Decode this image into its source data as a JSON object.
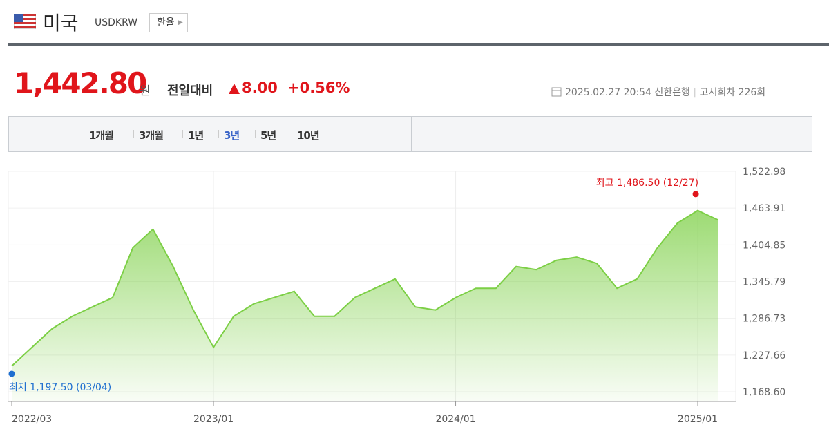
{
  "header": {
    "title": "미국",
    "code": "USDKRW",
    "button": "환율"
  },
  "price": {
    "value": "1,442.80",
    "unit": "원",
    "compare_label": "전일대비",
    "change": "8.00",
    "change_pct": "+0.56%"
  },
  "meta": {
    "datetime": "2025.02.27 20:54",
    "bank": "신한은행",
    "round": "고시회차 226회"
  },
  "tabs": [
    "1개월",
    "3개월",
    "1년",
    "3년",
    "5년",
    "10년"
  ],
  "active_tab": 3,
  "chart_data": {
    "type": "area",
    "color": "#7ccf45",
    "categories": [
      "2022/03",
      null,
      null,
      null,
      null,
      null,
      null,
      null,
      null,
      null,
      "2023/01",
      null,
      null,
      null,
      null,
      null,
      null,
      null,
      null,
      null,
      null,
      null,
      "2024/01",
      null,
      null,
      null,
      null,
      null,
      null,
      null,
      null,
      null,
      null,
      null,
      "2025/01",
      null
    ],
    "values": [
      1210,
      1240,
      1270,
      1290,
      1305,
      1320,
      1400,
      1430,
      1370,
      1300,
      1240,
      1290,
      1310,
      1320,
      1330,
      1290,
      1290,
      1320,
      1335,
      1350,
      1305,
      1300,
      1320,
      1335,
      1335,
      1370,
      1365,
      1380,
      1385,
      1375,
      1335,
      1350,
      1400,
      1440,
      1460,
      1445
    ],
    "ylim": [
      1168.6,
      1522.98
    ],
    "yticks": [
      {
        "value": 1168.6,
        "label": "1,168.60"
      },
      {
        "value": 1227.66,
        "label": "1,227.66"
      },
      {
        "value": 1286.73,
        "label": "1,286.73"
      },
      {
        "value": 1345.79,
        "label": "1,345.79"
      },
      {
        "value": 1404.85,
        "label": "1,404.85"
      },
      {
        "value": 1463.91,
        "label": "1,463.91"
      },
      {
        "value": 1522.98,
        "label": "1,522.98"
      }
    ],
    "annotations": [
      {
        "text": "최고 1,486.50 (12/27)",
        "value": 1486.5,
        "color": "#e0151b"
      },
      {
        "text": "최저 1,197.50 (03/04)",
        "value": 1197.5,
        "color": "#1e6fd0"
      }
    ],
    "grid": true
  }
}
